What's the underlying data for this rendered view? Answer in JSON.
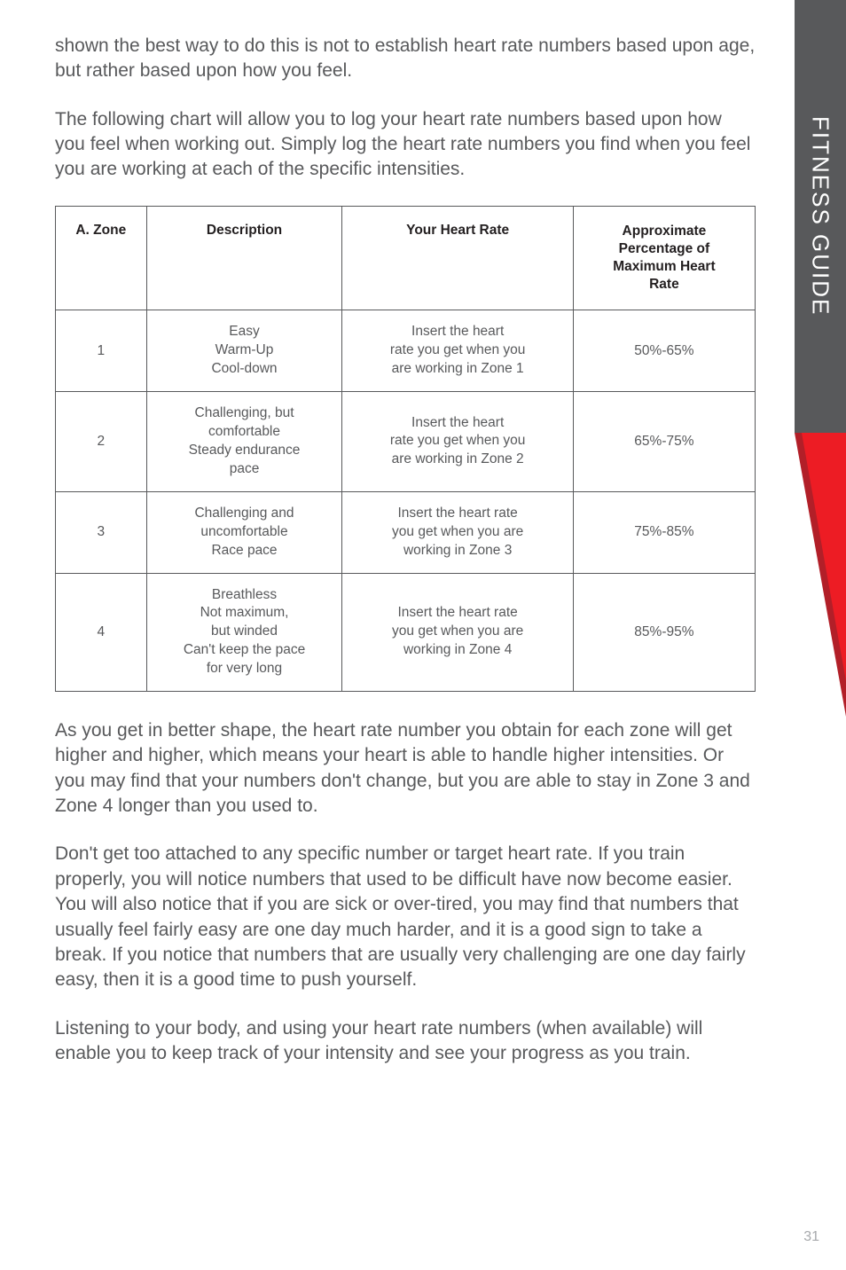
{
  "sideTab": "FITNESS GUIDE",
  "pageNumber": "31",
  "paragraphs": {
    "p1": "shown the best way to do this is not to establish heart rate numbers based upon age, but rather based upon how you feel.",
    "p2": "The following chart will allow you to log your heart rate numbers based upon how you feel when working out. Simply log the heart rate numbers you find when you feel you are working at each of the specific intensities.",
    "p3": "As you get in better shape, the heart rate number you obtain for each zone will get higher and higher, which means your heart is able to handle higher intensities. Or you may find that your numbers don't change, but you are able to stay in Zone 3 and Zone 4 longer than you used to.",
    "p4": "Don't get too attached to any specific number or target heart rate. If you train properly, you will notice numbers that used to be difficult have now become easier. You will also notice that if you are sick or over-tired, you may find that numbers that usually feel fairly easy are one day much harder, and it is a good sign to take a break. If you notice that numbers that are usually very challenging are one day fairly easy, then it is a good time to push yourself.",
    "p5": "Listening to your body, and using your heart rate numbers (when available) will enable you to keep track of your intensity and see your progress as you train."
  },
  "table": {
    "headers": {
      "zone": "A. Zone",
      "description": "Description",
      "heartRate": "Your Heart Rate",
      "percentage": "Approximate\nPercentage of\nMaximum Heart\nRate"
    },
    "rows": [
      {
        "zone": "1",
        "description": "Easy\nWarm-Up\nCool-down",
        "heartRate": "Insert the heart\nrate you get when you\nare working in Zone 1",
        "percentage": "50%-65%"
      },
      {
        "zone": "2",
        "description": "Challenging, but\ncomfortable\nSteady endurance\npace",
        "heartRate": "Insert the heart\nrate you get when you\nare working in Zone 2",
        "percentage": "65%-75%"
      },
      {
        "zone": "3",
        "description": "Challenging and\nuncomfortable\nRace pace",
        "heartRate": "Insert the heart rate\nyou get when you are\nworking in Zone 3",
        "percentage": "75%-85%"
      },
      {
        "zone": "4",
        "description": "Breathless\nNot maximum,\nbut winded\nCan't keep the pace\nfor very long",
        "heartRate": "Insert the heart rate\nyou get when you are\nworking in Zone 4",
        "percentage": "85%-95%"
      }
    ]
  },
  "colors": {
    "tabBg": "#58595b",
    "tabText": "#ffffff",
    "bodyText": "#58595b",
    "headerText": "#231f20",
    "border": "#58595b",
    "redDark": "#b21f28",
    "redLight": "#ed1c24",
    "pageNum": "#a7a9ac"
  }
}
